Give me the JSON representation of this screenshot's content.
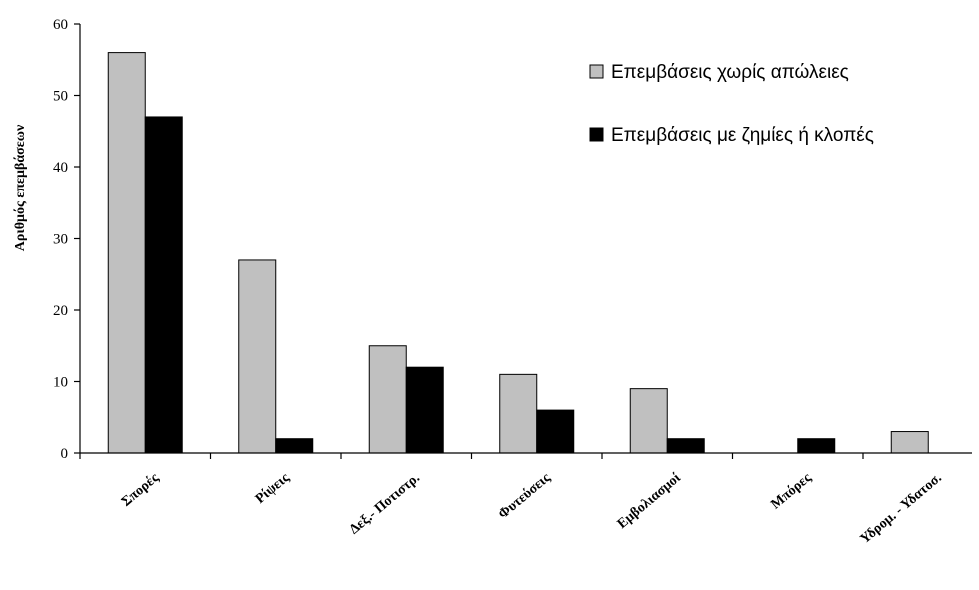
{
  "chart_data": {
    "type": "bar",
    "title": "",
    "xlabel": "",
    "ylabel": "Αριθμός επεμβάσεων",
    "ylim": [
      0,
      60
    ],
    "yticks": [
      0,
      10,
      20,
      30,
      40,
      50,
      60
    ],
    "grid": false,
    "legend_position": "top-right",
    "categories": [
      "Σπορές",
      "Ρίψεις",
      "Δεξ.- Ποτιστρ.",
      "Φυτεύσεις",
      "Εμβολιασμοί",
      "Μπόρες",
      "Υδρομ. - Υδατοσ."
    ],
    "series": [
      {
        "name": "Επεμβάσεις χωρίς απώλειες",
        "color": "#c0c0c0",
        "values": [
          56,
          27,
          15,
          11,
          9,
          0,
          3
        ]
      },
      {
        "name": "Επεμβάσεις με ζημίες ή κλοπές",
        "color": "#000000",
        "values": [
          47,
          2,
          12,
          6,
          2,
          2,
          0
        ]
      }
    ]
  }
}
